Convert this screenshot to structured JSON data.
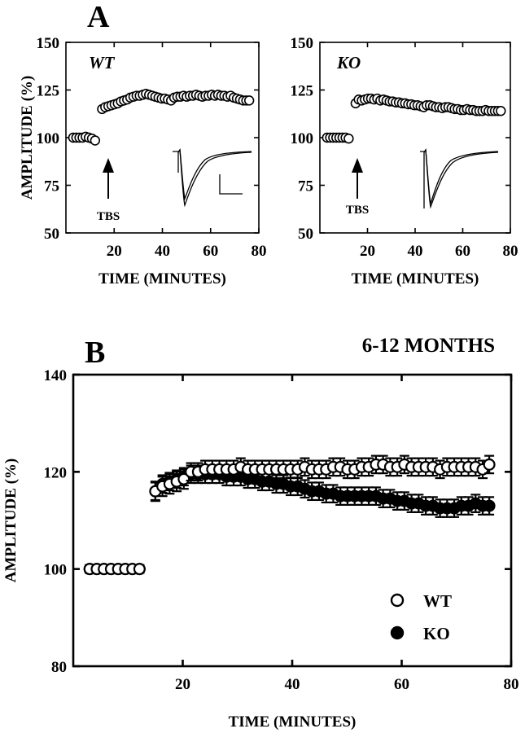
{
  "figure": {
    "panel_a_label": "A",
    "panel_b_label": "B"
  },
  "chart_data": [
    {
      "type": "scatter",
      "panel": "A-left",
      "inset_label": "WT",
      "annotation": "TBS",
      "xlabel": "TIME (MINUTES)",
      "ylabel": "AMPLITUDE (%)",
      "xlim": [
        0,
        80
      ],
      "ylim": [
        50,
        150
      ],
      "xticks": [
        20,
        40,
        60,
        80
      ],
      "yticks": [
        50,
        75,
        100,
        125,
        150
      ],
      "marker": "open",
      "series": [
        {
          "x": [
            3,
            4.3,
            5.6,
            6.9,
            8.2,
            9.5,
            10.8,
            12.1,
            15,
            16.3,
            17.6,
            18.9,
            20.2,
            21.5,
            22.8,
            24.1,
            25.4,
            26.7,
            28,
            29.3,
            30.6,
            31.9,
            33.2,
            34.5,
            35.8,
            37.1,
            38.4,
            39.7,
            41,
            42.3,
            43.6,
            44.9,
            46.2,
            47.5,
            48.8,
            50.1,
            51.4,
            52.7,
            54,
            55.3,
            56.6,
            57.9,
            59.2,
            60.5,
            61.8,
            63.1,
            64.4,
            65.7,
            67,
            68.3,
            69.6,
            70.9,
            72.2,
            73.5,
            74.8,
            76
          ],
          "y": [
            100,
            100,
            100,
            100,
            100.5,
            100,
            99.5,
            98.5,
            115,
            116,
            116.5,
            117,
            117.5,
            118,
            119,
            119.5,
            120,
            121,
            121.5,
            122,
            122,
            122.5,
            123,
            122.5,
            122,
            121.5,
            121,
            120.5,
            120.5,
            120,
            119.5,
            121,
            121.5,
            121.5,
            122,
            121.5,
            122,
            122,
            122.5,
            122,
            121.5,
            122,
            122,
            122.5,
            122,
            122.5,
            122,
            122,
            121.5,
            122,
            121,
            120.5,
            120,
            119.5,
            119.5,
            119.5
          ]
        }
      ]
    },
    {
      "type": "scatter",
      "panel": "A-right",
      "inset_label": "KO",
      "annotation": "TBS",
      "xlabel": "TIME (MINUTES)",
      "ylabel": "",
      "xlim": [
        0,
        80
      ],
      "ylim": [
        50,
        150
      ],
      "xticks": [
        20,
        40,
        60,
        80
      ],
      "yticks": [
        50,
        75,
        100,
        125,
        150
      ],
      "marker": "open",
      "series": [
        {
          "x": [
            3,
            4.3,
            5.6,
            6.9,
            8.2,
            9.5,
            10.8,
            12.1,
            15,
            16.3,
            17.6,
            18.9,
            20.2,
            21.5,
            22.8,
            24.1,
            25.4,
            26.7,
            28,
            29.3,
            30.6,
            31.9,
            33.2,
            34.5,
            35.8,
            37.1,
            38.4,
            39.7,
            41,
            42.3,
            43.6,
            44.9,
            46.2,
            47.5,
            48.8,
            50.1,
            51.4,
            52.7,
            54,
            55.3,
            56.6,
            57.9,
            59.2,
            60.5,
            61.8,
            63.1,
            64.4,
            65.7,
            67,
            68.3,
            69.6,
            70.9,
            72.2,
            73.5,
            74.8,
            76
          ],
          "y": [
            100,
            100,
            100,
            100,
            100,
            100,
            100,
            99.5,
            118,
            120,
            119.5,
            120,
            120.5,
            120.5,
            120,
            120.5,
            119.5,
            120,
            119.5,
            119,
            119,
            118.5,
            118.5,
            118,
            118,
            117.5,
            117.5,
            117,
            117,
            116.5,
            116,
            117,
            117,
            116.5,
            116,
            116,
            115.5,
            116,
            116,
            115.5,
            115,
            115,
            114.5,
            114.5,
            115,
            114.5,
            114.5,
            114,
            114,
            114,
            114.5,
            114,
            114,
            114,
            114,
            114
          ]
        }
      ]
    },
    {
      "type": "scatter",
      "panel": "B",
      "title": "6-12 MONTHS",
      "xlabel": "TIME (MINUTES)",
      "ylabel": "AMPLITUDE (%)",
      "xlim": [
        0,
        80
      ],
      "ylim": [
        80,
        140
      ],
      "xticks": [
        20,
        40,
        60,
        80
      ],
      "yticks": [
        80,
        100,
        120,
        140
      ],
      "legend": "lower-right",
      "series": [
        {
          "name": "KO",
          "marker": "filled",
          "x": [
            3,
            4.3,
            5.6,
            6.9,
            8.2,
            9.5,
            10.8,
            12.1,
            15,
            16.3,
            17.6,
            18.9,
            20.2,
            21.5,
            22.8,
            24.1,
            25.4,
            26.7,
            28,
            29.3,
            30.6,
            31.9,
            33.2,
            34.5,
            35.8,
            37.1,
            38.4,
            39.7,
            41,
            42.3,
            43.6,
            44.9,
            46.2,
            47.5,
            48.8,
            50.1,
            51.4,
            52.7,
            54,
            55.3,
            56.6,
            57.9,
            59.2,
            60.5,
            61.8,
            63.1,
            64.4,
            65.7,
            67,
            68.3,
            69.6,
            70.9,
            72.2,
            73.5,
            74.8,
            76
          ],
          "y": [
            100,
            100,
            100,
            100,
            100,
            100,
            100,
            100,
            116,
            117.5,
            118,
            118.5,
            119,
            119.5,
            119.5,
            119.5,
            119.5,
            119.5,
            119,
            119,
            119,
            118.5,
            118.5,
            118,
            118,
            117.5,
            117.5,
            117,
            117,
            116.5,
            116,
            116,
            115.5,
            115.5,
            115,
            115,
            115,
            115,
            115,
            115,
            114.5,
            114.5,
            114,
            114,
            113.5,
            113.5,
            113,
            113,
            112.5,
            112.5,
            112.5,
            113,
            113,
            113.5,
            113,
            113
          ],
          "err": [
            0.8,
            0.8,
            0.8,
            0.8,
            0.8,
            0.8,
            0.8,
            0.8,
            1.8,
            1.8,
            1.8,
            1.8,
            1.8,
            1.8,
            1.8,
            1.8,
            1.8,
            1.8,
            1.8,
            1.8,
            1.8,
            1.8,
            1.8,
            1.8,
            1.8,
            1.8,
            1.8,
            1.8,
            1.8,
            1.8,
            1.8,
            1.8,
            1.8,
            1.8,
            1.8,
            1.8,
            1.8,
            1.8,
            1.8,
            1.8,
            1.8,
            1.8,
            1.8,
            1.8,
            1.8,
            1.8,
            1.8,
            1.8,
            1.8,
            1.8,
            1.8,
            1.8,
            1.8,
            1.8,
            1.8,
            1.8
          ]
        },
        {
          "name": "WT",
          "marker": "open",
          "x": [
            3,
            4.3,
            5.6,
            6.9,
            8.2,
            9.5,
            10.8,
            12.1,
            15,
            16.3,
            17.6,
            18.9,
            20.2,
            21.5,
            22.8,
            24.1,
            25.4,
            26.7,
            28,
            29.3,
            30.6,
            31.9,
            33.2,
            34.5,
            35.8,
            37.1,
            38.4,
            39.7,
            41,
            42.3,
            43.6,
            44.9,
            46.2,
            47.5,
            48.8,
            50.1,
            51.4,
            52.7,
            54,
            55.3,
            56.6,
            57.9,
            59.2,
            60.5,
            61.8,
            63.1,
            64.4,
            65.7,
            67,
            68.3,
            69.6,
            70.9,
            72.2,
            73.5,
            74.8,
            76
          ],
          "y": [
            100,
            100,
            100,
            100,
            100,
            100,
            100,
            100,
            116,
            117,
            117.5,
            118,
            118.5,
            120,
            120,
            120.5,
            120.5,
            120.5,
            120.5,
            120.5,
            121,
            120.5,
            120.5,
            120.5,
            120.5,
            120.5,
            120.5,
            120.5,
            120.5,
            121,
            120.5,
            120.5,
            120.5,
            121,
            121,
            120.5,
            120.5,
            121,
            121,
            121.5,
            121.5,
            121,
            121,
            121.5,
            121,
            121,
            121,
            121,
            120.5,
            121,
            121,
            121,
            121,
            121,
            120.5,
            121.5
          ],
          "err": [
            0.8,
            0.8,
            0.8,
            0.8,
            0.8,
            0.8,
            0.8,
            0.8,
            2.0,
            2.0,
            2.0,
            2.0,
            2.0,
            1.8,
            1.8,
            1.8,
            1.8,
            1.8,
            1.8,
            1.8,
            1.8,
            1.8,
            1.8,
            1.8,
            1.8,
            1.8,
            1.8,
            1.8,
            1.8,
            1.8,
            1.8,
            1.8,
            1.8,
            1.8,
            1.8,
            1.8,
            1.8,
            1.8,
            1.8,
            1.8,
            1.8,
            1.8,
            1.8,
            1.8,
            1.8,
            1.8,
            1.8,
            1.8,
            1.8,
            1.8,
            1.8,
            1.8,
            1.8,
            1.8,
            1.8,
            1.8
          ]
        }
      ]
    }
  ]
}
